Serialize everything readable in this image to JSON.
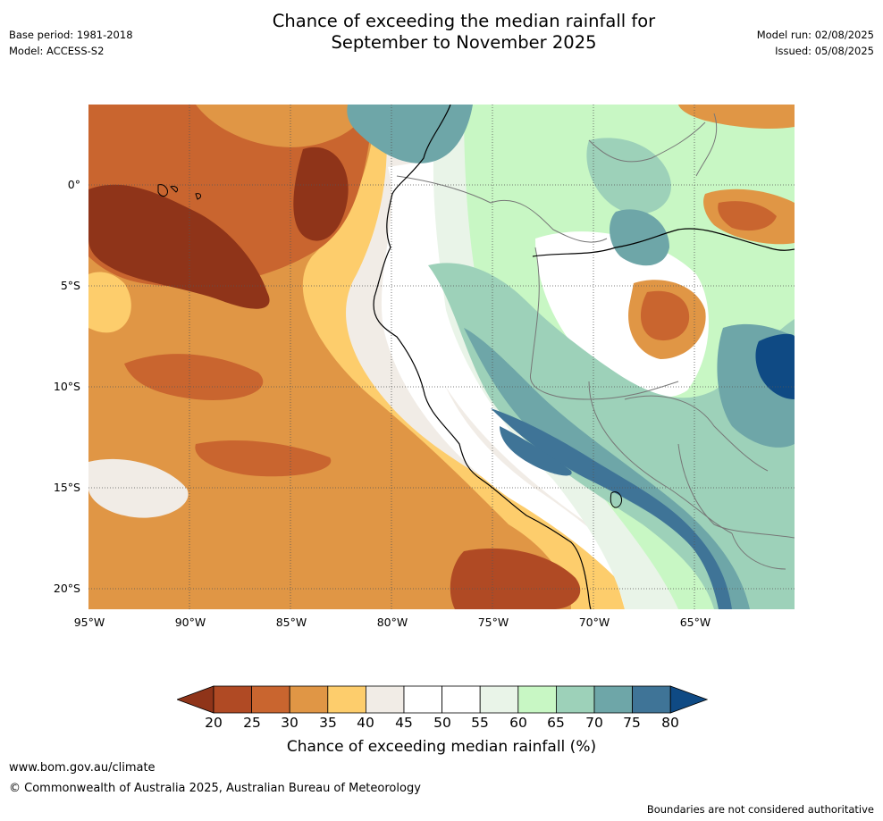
{
  "title_line1": "Chance of exceeding the median rainfall for",
  "title_line2": "September to November 2025",
  "base_period": "Base period: 1981-2018",
  "model": "Model: ACCESS-S2",
  "model_run": "Model run: 02/08/2025",
  "issued": "Issued: 05/08/2025",
  "lat_labels": [
    "0°",
    "5°S",
    "10°S",
    "15°S",
    "20°S"
  ],
  "lon_labels": [
    "95°W",
    "90°W",
    "85°W",
    "80°W",
    "75°W",
    "70°W",
    "65°W"
  ],
  "colorbar": {
    "ticks": [
      "20",
      "25",
      "30",
      "35",
      "40",
      "45",
      "50",
      "55",
      "60",
      "65",
      "70",
      "75",
      "80"
    ],
    "colors": [
      "#8f3419",
      "#b04a24",
      "#c9652f",
      "#e09645",
      "#fdcd6c",
      "#f1ece6",
      "#ffffff",
      "#ffffff",
      "#e9f4e8",
      "#c8f7c4",
      "#9dd1b9",
      "#6ea6a8",
      "#3f7497",
      "#0f4a84"
    ],
    "label": "Chance of exceeding median rainfall (%)"
  },
  "footer_url": "www.bom.gov.au/climate",
  "copyright": "© Commonwealth of Australia 2025, Australian Bureau of Meteorology",
  "disclaimer": "Boundaries are not considered authoritative"
}
